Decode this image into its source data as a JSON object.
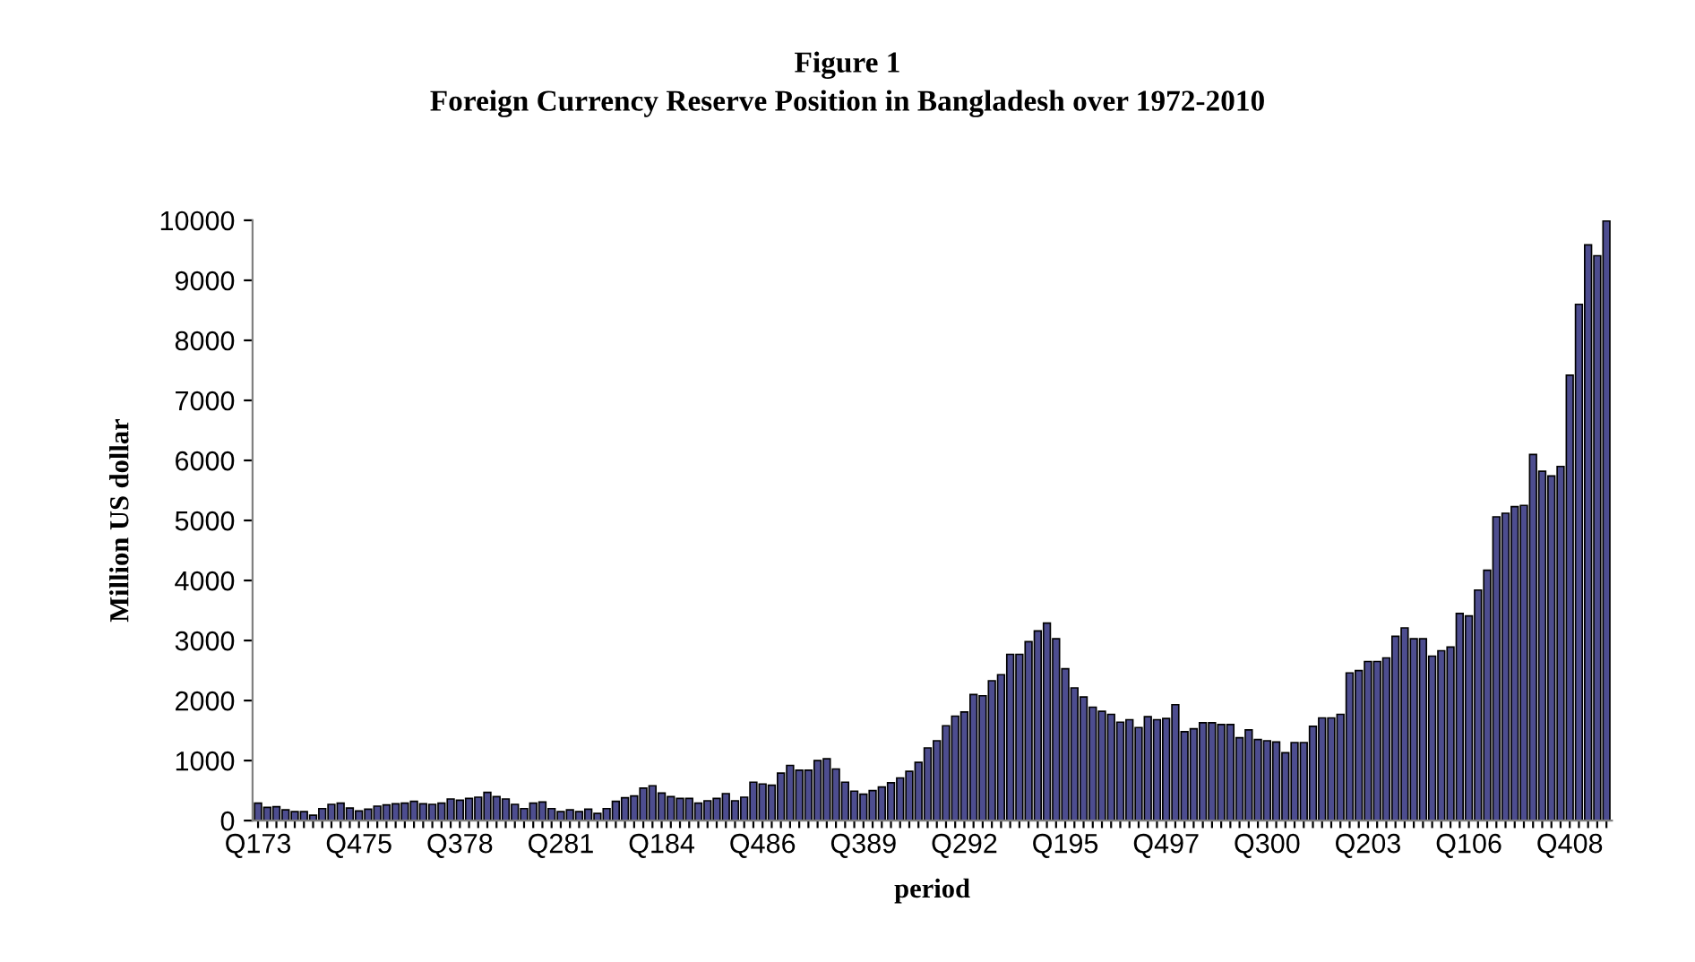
{
  "chart_data": {
    "type": "bar",
    "title": "Figure 1",
    "subtitle": "Foreign Currency Reserve Position in Bangladesh over 1972-2010",
    "xlabel": "period",
    "ylabel": "Million US dollar",
    "categories": [
      "Q173",
      null,
      null,
      null,
      null,
      null,
      null,
      null,
      null,
      null,
      null,
      "Q475",
      null,
      null,
      null,
      null,
      null,
      null,
      null,
      null,
      null,
      null,
      "Q378",
      null,
      null,
      null,
      null,
      null,
      null,
      null,
      null,
      null,
      null,
      "Q281",
      null,
      null,
      null,
      null,
      null,
      null,
      null,
      null,
      null,
      null,
      "Q184",
      null,
      null,
      null,
      null,
      null,
      null,
      null,
      null,
      null,
      null,
      "Q486",
      null,
      null,
      null,
      null,
      null,
      null,
      null,
      null,
      null,
      null,
      "Q389",
      null,
      null,
      null,
      null,
      null,
      null,
      null,
      null,
      null,
      null,
      "Q292",
      null,
      null,
      null,
      null,
      null,
      null,
      null,
      null,
      null,
      null,
      "Q195",
      null,
      null,
      null,
      null,
      null,
      null,
      null,
      null,
      null,
      null,
      "Q497",
      null,
      null,
      null,
      null,
      null,
      null,
      null,
      null,
      null,
      null,
      "Q300",
      null,
      null,
      null,
      null,
      null,
      null,
      null,
      null,
      null,
      null,
      "Q203",
      null,
      null,
      null,
      null,
      null,
      null,
      null,
      null,
      null,
      null,
      "Q106",
      null,
      null,
      null,
      null,
      null,
      null,
      null,
      null,
      null,
      null,
      "Q408",
      null,
      null,
      null,
      null
    ],
    "values": [
      290,
      220,
      230,
      180,
      150,
      150,
      90,
      200,
      270,
      290,
      210,
      160,
      190,
      240,
      260,
      280,
      290,
      320,
      280,
      270,
      290,
      360,
      340,
      370,
      390,
      470,
      400,
      360,
      270,
      200,
      290,
      310,
      200,
      150,
      180,
      150,
      190,
      120,
      200,
      320,
      380,
      410,
      540,
      580,
      460,
      400,
      370,
      370,
      290,
      330,
      370,
      450,
      330,
      390,
      640,
      610,
      590,
      790,
      920,
      840,
      840,
      1000,
      1030,
      860,
      640,
      490,
      440,
      500,
      560,
      630,
      710,
      820,
      970,
      1210,
      1330,
      1580,
      1740,
      1810,
      2100,
      2080,
      2330,
      2430,
      2770,
      2770,
      2980,
      3160,
      3290,
      3030,
      2530,
      2210,
      2060,
      1890,
      1820,
      1770,
      1640,
      1680,
      1550,
      1730,
      1680,
      1700,
      1930,
      1480,
      1530,
      1630,
      1630,
      1600,
      1600,
      1380,
      1510,
      1350,
      1330,
      1310,
      1130,
      1300,
      1300,
      1570,
      1710,
      1710,
      1770,
      2460,
      2500,
      2650,
      2650,
      2710,
      3070,
      3210,
      3030,
      3030,
      2740,
      2830,
      2890,
      3450,
      3410,
      3840,
      4170,
      5060,
      5120,
      5230,
      5250,
      6100,
      5820,
      5740,
      5900,
      7420,
      8600,
      9590,
      9410,
      9990
    ],
    "color": "#4d4d8f",
    "ylim": [
      0,
      10000
    ],
    "yticks": [
      0,
      1000,
      2000,
      3000,
      4000,
      5000,
      6000,
      7000,
      8000,
      9000,
      10000
    ],
    "grid": false,
    "legend": false
  }
}
